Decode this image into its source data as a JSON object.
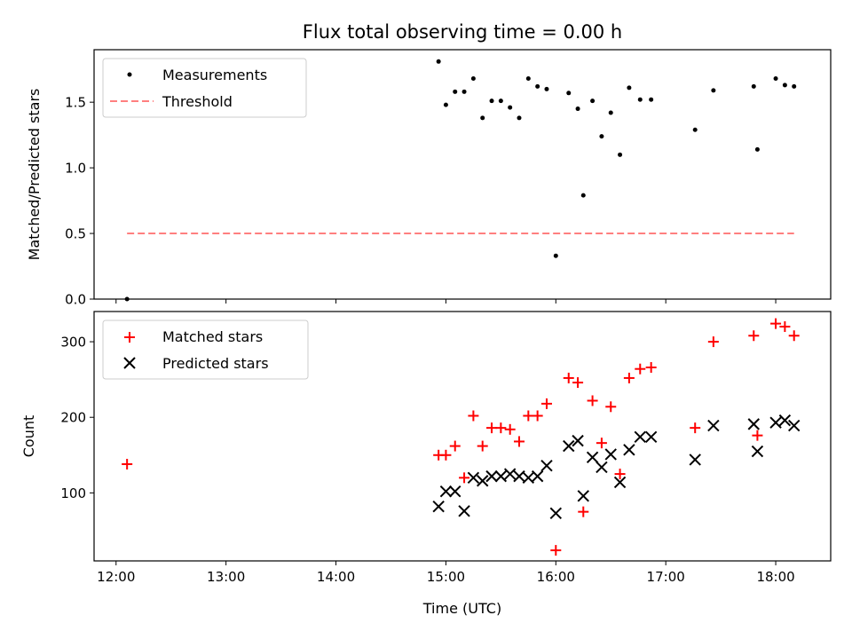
{
  "chart_data": [
    {
      "type": "scatter",
      "title": "Flux total observing time = 0.00 h",
      "xlabel": "",
      "ylabel": "Matched/Predicted stars",
      "xlim": [
        "11:48",
        "18:30"
      ],
      "ylim": [
        0,
        1.9
      ],
      "xticks": [
        "12:00",
        "13:00",
        "14:00",
        "15:00",
        "16:00",
        "17:00",
        "18:00"
      ],
      "yticks": [
        "0.0",
        "0.5",
        "1.0",
        "1.5"
      ],
      "legend_position": "upper left",
      "series": [
        {
          "name": "Measurements",
          "marker": "dot",
          "color": "#000000",
          "points": [
            [
              "12:06",
              0.0
            ],
            [
              "14:56",
              1.81
            ],
            [
              "15:00",
              1.48
            ],
            [
              "15:05",
              1.58
            ],
            [
              "15:10",
              1.58
            ],
            [
              "15:15",
              1.68
            ],
            [
              "15:20",
              1.38
            ],
            [
              "15:25",
              1.51
            ],
            [
              "15:30",
              1.51
            ],
            [
              "15:35",
              1.46
            ],
            [
              "15:40",
              1.38
            ],
            [
              "15:45",
              1.68
            ],
            [
              "15:50",
              1.62
            ],
            [
              "15:55",
              1.6
            ],
            [
              "16:00",
              0.33
            ],
            [
              "16:07",
              1.57
            ],
            [
              "16:12",
              1.45
            ],
            [
              "16:15",
              0.79
            ],
            [
              "16:20",
              1.51
            ],
            [
              "16:25",
              1.24
            ],
            [
              "16:30",
              1.42
            ],
            [
              "16:35",
              1.1
            ],
            [
              "16:40",
              1.61
            ],
            [
              "16:46",
              1.52
            ],
            [
              "16:52",
              1.52
            ],
            [
              "17:16",
              1.29
            ],
            [
              "17:26",
              1.59
            ],
            [
              "17:48",
              1.62
            ],
            [
              "17:50",
              1.14
            ],
            [
              "18:00",
              1.68
            ],
            [
              "18:05",
              1.63
            ],
            [
              "18:10",
              1.62
            ]
          ]
        },
        {
          "name": "Threshold",
          "style": "dashed",
          "color": "#ff7f7f",
          "points": [
            [
              "12:06",
              0.5
            ],
            [
              "18:10",
              0.5
            ]
          ]
        }
      ]
    },
    {
      "type": "scatter",
      "title": "",
      "xlabel": "Time (UTC)",
      "ylabel": "Count",
      "xlim": [
        "11:48",
        "18:30"
      ],
      "ylim": [
        10,
        340
      ],
      "xticks": [
        "12:00",
        "13:00",
        "14:00",
        "15:00",
        "16:00",
        "17:00",
        "18:00"
      ],
      "yticks": [
        "100",
        "200",
        "300"
      ],
      "legend_position": "upper left",
      "series": [
        {
          "name": "Matched stars",
          "marker": "plus",
          "color": "#ff0000",
          "points": [
            [
              "12:06",
              138
            ],
            [
              "14:56",
              150
            ],
            [
              "15:00",
              150
            ],
            [
              "15:05",
              162
            ],
            [
              "15:10",
              120
            ],
            [
              "15:15",
              202
            ],
            [
              "15:20",
              162
            ],
            [
              "15:25",
              186
            ],
            [
              "15:30",
              186
            ],
            [
              "15:35",
              184
            ],
            [
              "15:40",
              168
            ],
            [
              "15:45",
              202
            ],
            [
              "15:50",
              202
            ],
            [
              "15:55",
              218
            ],
            [
              "16:00",
              24
            ],
            [
              "16:07",
              252
            ],
            [
              "16:12",
              246
            ],
            [
              "16:15",
              75
            ],
            [
              "16:20",
              222
            ],
            [
              "16:25",
              166
            ],
            [
              "16:30",
              214
            ],
            [
              "16:35",
              125
            ],
            [
              "16:40",
              252
            ],
            [
              "16:46",
              264
            ],
            [
              "16:52",
              266
            ],
            [
              "17:16",
              186
            ],
            [
              "17:26",
              300
            ],
            [
              "17:48",
              308
            ],
            [
              "17:50",
              176
            ],
            [
              "18:00",
              324
            ],
            [
              "18:05",
              320
            ],
            [
              "18:10",
              308
            ]
          ]
        },
        {
          "name": "Predicted stars",
          "marker": "x",
          "color": "#000000",
          "points": [
            [
              "14:56",
              82
            ],
            [
              "15:00",
              102
            ],
            [
              "15:05",
              102
            ],
            [
              "15:10",
              76
            ],
            [
              "15:15",
              120
            ],
            [
              "15:20",
              116
            ],
            [
              "15:25",
              122
            ],
            [
              "15:30",
              122
            ],
            [
              "15:35",
              125
            ],
            [
              "15:40",
              122
            ],
            [
              "15:45",
              120
            ],
            [
              "15:50",
              122
            ],
            [
              "15:55",
              136
            ],
            [
              "16:00",
              73
            ],
            [
              "16:07",
              162
            ],
            [
              "16:12",
              169
            ],
            [
              "16:15",
              96
            ],
            [
              "16:20",
              147
            ],
            [
              "16:25",
              134
            ],
            [
              "16:30",
              151
            ],
            [
              "16:35",
              114
            ],
            [
              "16:40",
              157
            ],
            [
              "16:46",
              174
            ],
            [
              "16:52",
              174
            ],
            [
              "17:16",
              144
            ],
            [
              "17:26",
              189
            ],
            [
              "17:48",
              191
            ],
            [
              "17:50",
              155
            ],
            [
              "18:00",
              193
            ],
            [
              "18:05",
              196
            ],
            [
              "18:10",
              189
            ]
          ]
        }
      ]
    }
  ]
}
